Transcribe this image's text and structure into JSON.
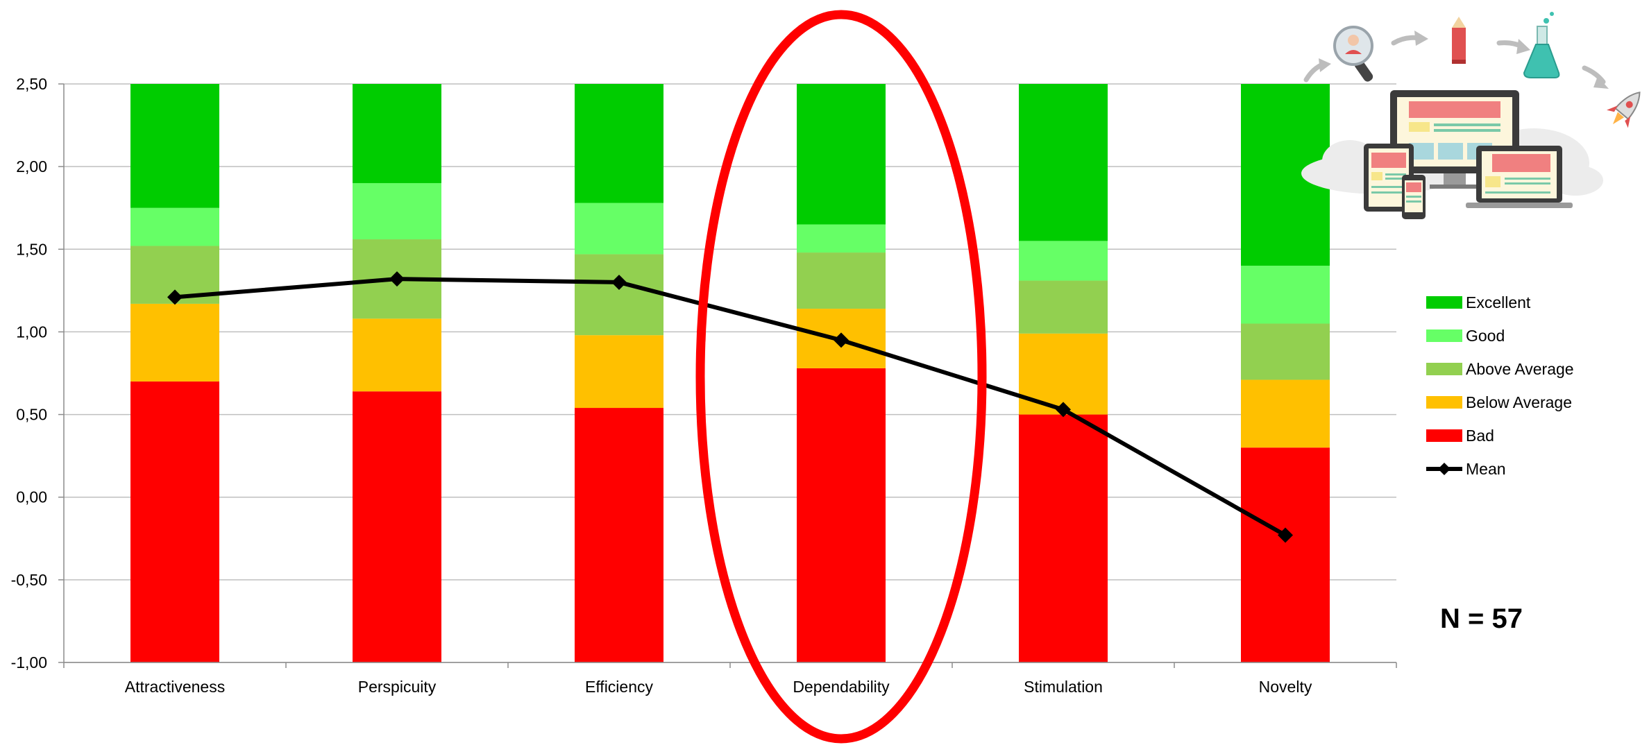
{
  "chart_data": {
    "type": "bar",
    "stacked": true,
    "categories": [
      "Attractiveness",
      "Perspicuity",
      "Efficiency",
      "Dependability",
      "Stimulation",
      "Novelty"
    ],
    "ylim": [
      -1.0,
      2.5
    ],
    "ytick_labels": [
      "2,50",
      "2,00",
      "1,50",
      "1,00",
      "0,50",
      "0,00",
      "-0,50",
      "-1,00"
    ],
    "ytick_values": [
      2.5,
      2.0,
      1.5,
      1.0,
      0.5,
      0.0,
      -0.5,
      -1.0
    ],
    "grid": true,
    "legend_position": "right",
    "title": "",
    "xlabel": "",
    "ylabel": "",
    "bands": [
      {
        "name": "Bad",
        "color": "#ff0000",
        "upper": [
          0.7,
          0.64,
          0.54,
          0.78,
          0.5,
          0.3
        ]
      },
      {
        "name": "Below Average",
        "color": "#ffc000",
        "upper": [
          1.17,
          1.08,
          0.98,
          1.14,
          0.99,
          0.71
        ]
      },
      {
        "name": "Above Average",
        "color": "#92d050",
        "upper": [
          1.52,
          1.56,
          1.47,
          1.48,
          1.31,
          1.05
        ]
      },
      {
        "name": "Good",
        "color": "#66ff66",
        "upper": [
          1.75,
          1.9,
          1.78,
          1.65,
          1.55,
          1.4
        ]
      },
      {
        "name": "Excellent",
        "color": "#00cc00",
        "upper": [
          2.5,
          2.5,
          2.5,
          2.5,
          2.5,
          2.5
        ]
      }
    ],
    "series": [
      {
        "name": "Mean",
        "type": "line",
        "color": "#000000",
        "values": [
          1.21,
          1.32,
          1.3,
          0.95,
          0.53,
          -0.23
        ]
      }
    ],
    "legend": [
      "Excellent",
      "Good",
      "Above Average",
      "Below Average",
      "Bad",
      "Mean"
    ],
    "highlight": {
      "category": "Dependability",
      "shape": "ellipse",
      "color": "#ff0000"
    },
    "annotation": "N = 57"
  },
  "illustration": {
    "name": "ux-process-illustration",
    "accent": "#f08080"
  }
}
